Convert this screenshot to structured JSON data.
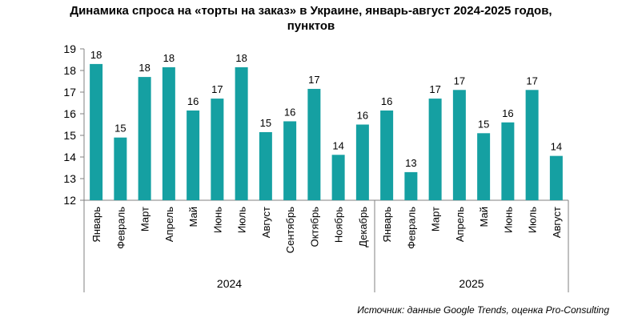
{
  "title_line1": "Динамика спроса на «торты на заказ» в Украине, январь-август 2024-2025 годов,",
  "title_line2": "пунктов",
  "source": "Источник: данные Google Trends, оценка Pro-Consulting",
  "colors": {
    "bar": "#15A0A2",
    "axis": "#808080"
  },
  "chart_data": {
    "type": "bar",
    "title": "Динамика спроса на «торты на заказ» в Украине, январь-август 2024-2025 годов, пунктов",
    "ylim": [
      12,
      19
    ],
    "yticks": [
      12,
      13,
      14,
      15,
      16,
      17,
      18,
      19
    ],
    "grid": false,
    "groups": [
      {
        "year": "2024",
        "categories": [
          "Январь",
          "Февраль",
          "Март",
          "Апрель",
          "Май",
          "Июнь",
          "Июль",
          "Август",
          "Сентябрь",
          "Октябрь",
          "Ноябрь",
          "Декабрь"
        ],
        "values": [
          18.3,
          14.9,
          17.7,
          18.15,
          16.15,
          16.7,
          18.15,
          15.15,
          15.65,
          17.15,
          14.1,
          15.5
        ],
        "labels": [
          "18",
          "15",
          "18",
          "18",
          "16",
          "17",
          "18",
          "15",
          "16",
          "17",
          "14",
          "16"
        ]
      },
      {
        "year": "2025",
        "categories": [
          "Январь",
          "Февраль",
          "Март",
          "Апрель",
          "Май",
          "Июнь",
          "Июль",
          "Август"
        ],
        "values": [
          16.15,
          13.3,
          16.7,
          17.1,
          15.1,
          15.6,
          17.1,
          14.05
        ],
        "labels": [
          "16",
          "13",
          "17",
          "17",
          "15",
          "16",
          "17",
          "14"
        ]
      }
    ]
  }
}
